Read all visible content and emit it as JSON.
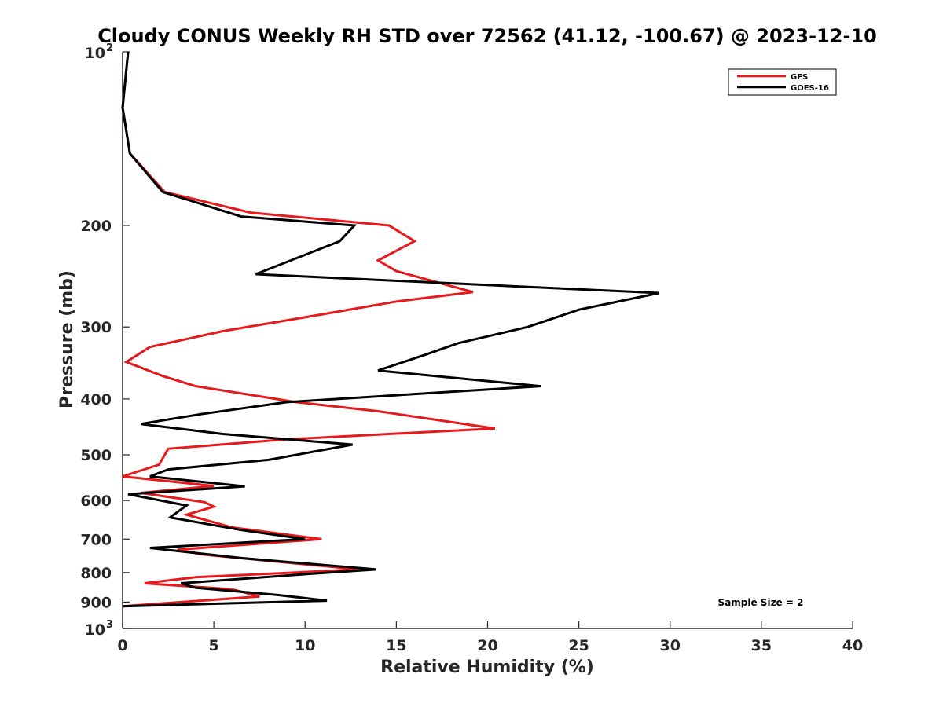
{
  "chart_data": {
    "type": "line",
    "title": "Cloudy CONUS Weekly RH STD over 72562 (41.12, -100.67) @ 2023-12-10",
    "xlabel": "Relative Humidity (%)",
    "ylabel": "Pressure (mb)",
    "xlim": [
      0,
      40
    ],
    "ylim": [
      100,
      1000
    ],
    "y_scale": "log",
    "y_inverted": true,
    "grid": false,
    "legend_position": "top-right",
    "x_ticks": [
      "0",
      "5",
      "10",
      "15",
      "20",
      "25",
      "30",
      "35",
      "40"
    ],
    "y_ticks": [
      {
        "value": 100,
        "label": "10",
        "exp": "2"
      },
      {
        "value": 200,
        "label": "200",
        "exp": ""
      },
      {
        "value": 300,
        "label": "300",
        "exp": ""
      },
      {
        "value": 400,
        "label": "400",
        "exp": ""
      },
      {
        "value": 500,
        "label": "500",
        "exp": ""
      },
      {
        "value": 600,
        "label": "600",
        "exp": ""
      },
      {
        "value": 700,
        "label": "700",
        "exp": ""
      },
      {
        "value": 800,
        "label": "800",
        "exp": ""
      },
      {
        "value": 900,
        "label": "900",
        "exp": ""
      },
      {
        "value": 1000,
        "label": "10",
        "exp": "3"
      }
    ],
    "series": [
      {
        "name": "GFS",
        "color": "#e41a1c",
        "points": [
          [
            0.3,
            100
          ],
          [
            0.0,
            125
          ],
          [
            0.4,
            150
          ],
          [
            2.3,
            175
          ],
          [
            7.0,
            190
          ],
          [
            14.6,
            200
          ],
          [
            16.0,
            213
          ],
          [
            14.0,
            230
          ],
          [
            15.0,
            240
          ],
          [
            19.2,
            261
          ],
          [
            15.0,
            271
          ],
          [
            11.0,
            285
          ],
          [
            5.5,
            305
          ],
          [
            1.5,
            325
          ],
          [
            0.2,
            345
          ],
          [
            2.2,
            365
          ],
          [
            4.0,
            380
          ],
          [
            9.5,
            405
          ],
          [
            14.0,
            420
          ],
          [
            20.4,
            450
          ],
          [
            9.0,
            470
          ],
          [
            2.5,
            488
          ],
          [
            2.0,
            520
          ],
          [
            0.0,
            545
          ],
          [
            5.0,
            566
          ],
          [
            1.0,
            582
          ],
          [
            4.5,
            604
          ],
          [
            5.0,
            615
          ],
          [
            3.5,
            635
          ],
          [
            6.0,
            668
          ],
          [
            10.9,
            700
          ],
          [
            3.0,
            730
          ],
          [
            4.5,
            745
          ],
          [
            13.0,
            790
          ],
          [
            4.0,
            815
          ],
          [
            1.2,
            835
          ],
          [
            6.0,
            855
          ],
          [
            7.5,
            880
          ],
          [
            0.0,
            915
          ]
        ]
      },
      {
        "name": "GOES-16",
        "color": "#000000",
        "points": [
          [
            0.3,
            100
          ],
          [
            0.0,
            125
          ],
          [
            0.4,
            150
          ],
          [
            2.2,
            175
          ],
          [
            6.5,
            193
          ],
          [
            12.7,
            200
          ],
          [
            11.9,
            213
          ],
          [
            7.3,
            243
          ],
          [
            29.4,
            262
          ],
          [
            25.0,
            280
          ],
          [
            22.2,
            300
          ],
          [
            18.4,
            320
          ],
          [
            16.6,
            335
          ],
          [
            14.0,
            357
          ],
          [
            22.9,
            380
          ],
          [
            9.0,
            405
          ],
          [
            4.3,
            425
          ],
          [
            1.0,
            442
          ],
          [
            5.5,
            460
          ],
          [
            12.6,
            480
          ],
          [
            8.0,
            510
          ],
          [
            2.5,
            530
          ],
          [
            1.5,
            545
          ],
          [
            6.7,
            567
          ],
          [
            0.3,
            585
          ],
          [
            3.5,
            612
          ],
          [
            2.6,
            642
          ],
          [
            6.5,
            675
          ],
          [
            10.0,
            700
          ],
          [
            1.5,
            725
          ],
          [
            6.5,
            755
          ],
          [
            13.9,
            790
          ],
          [
            10.0,
            805
          ],
          [
            3.2,
            835
          ],
          [
            4.0,
            850
          ],
          [
            8.5,
            875
          ],
          [
            11.2,
            895
          ],
          [
            0.0,
            915
          ]
        ]
      }
    ],
    "annotations": [
      {
        "text": "Sample Size = 2"
      }
    ]
  }
}
